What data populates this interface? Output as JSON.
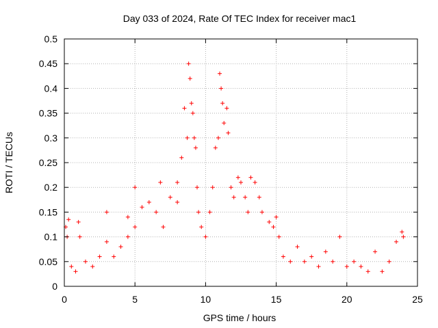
{
  "chart_data": {
    "type": "scatter",
    "title": "Day 033 of 2024, Rate Of TEC Index for receiver mac1",
    "xlabel": "GPS time / hours",
    "ylabel": "ROTI / TECUs",
    "xlim": [
      0,
      25
    ],
    "ylim": [
      0,
      0.5
    ],
    "xticks": [
      0,
      5,
      10,
      15,
      20,
      25
    ],
    "yticks": [
      0,
      0.05,
      0.1,
      0.15,
      0.2,
      0.25,
      0.3,
      0.35,
      0.4,
      0.45,
      0.5
    ],
    "xtick_labels": [
      "0",
      "5",
      "10",
      "15",
      "20",
      "25"
    ],
    "ytick_labels": [
      "0",
      "0.05",
      "0.1",
      "0.15",
      "0.2",
      "0.25",
      "0.3",
      "0.35",
      "0.4",
      "0.45",
      "0.5"
    ],
    "grid": true,
    "marker": "+",
    "color": "#ff0000",
    "points": [
      [
        0.1,
        0.12
      ],
      [
        0.2,
        0.1
      ],
      [
        0.3,
        0.135
      ],
      [
        0.5,
        0.04
      ],
      [
        0.8,
        0.03
      ],
      [
        1.0,
        0.13
      ],
      [
        1.1,
        0.1
      ],
      [
        1.5,
        0.05
      ],
      [
        2.0,
        0.04
      ],
      [
        2.5,
        0.06
      ],
      [
        3.0,
        0.09
      ],
      [
        3.0,
        0.15
      ],
      [
        3.5,
        0.06
      ],
      [
        4.0,
        0.08
      ],
      [
        4.5,
        0.1
      ],
      [
        4.5,
        0.14
      ],
      [
        5.0,
        0.2
      ],
      [
        5.0,
        0.12
      ],
      [
        5.5,
        0.16
      ],
      [
        6.0,
        0.17
      ],
      [
        6.5,
        0.15
      ],
      [
        6.8,
        0.21
      ],
      [
        7.0,
        0.12
      ],
      [
        7.5,
        0.18
      ],
      [
        8.0,
        0.17
      ],
      [
        8.0,
        0.21
      ],
      [
        8.3,
        0.26
      ],
      [
        8.5,
        0.36
      ],
      [
        8.7,
        0.3
      ],
      [
        8.8,
        0.45
      ],
      [
        8.9,
        0.42
      ],
      [
        9.0,
        0.37
      ],
      [
        9.1,
        0.35
      ],
      [
        9.2,
        0.3
      ],
      [
        9.3,
        0.28
      ],
      [
        9.4,
        0.2
      ],
      [
        9.5,
        0.15
      ],
      [
        9.7,
        0.12
      ],
      [
        10.0,
        0.1
      ],
      [
        10.3,
        0.15
      ],
      [
        10.5,
        0.2
      ],
      [
        10.7,
        0.28
      ],
      [
        10.9,
        0.3
      ],
      [
        11.0,
        0.43
      ],
      [
        11.1,
        0.4
      ],
      [
        11.2,
        0.37
      ],
      [
        11.3,
        0.33
      ],
      [
        11.5,
        0.36
      ],
      [
        11.6,
        0.31
      ],
      [
        11.8,
        0.2
      ],
      [
        12.0,
        0.18
      ],
      [
        12.3,
        0.22
      ],
      [
        12.5,
        0.21
      ],
      [
        12.8,
        0.18
      ],
      [
        13.0,
        0.15
      ],
      [
        13.2,
        0.22
      ],
      [
        13.5,
        0.21
      ],
      [
        13.8,
        0.18
      ],
      [
        14.0,
        0.15
      ],
      [
        14.5,
        0.13
      ],
      [
        14.8,
        0.12
      ],
      [
        15.0,
        0.14
      ],
      [
        15.2,
        0.1
      ],
      [
        15.5,
        0.06
      ],
      [
        16.0,
        0.05
      ],
      [
        16.5,
        0.08
      ],
      [
        17.0,
        0.05
      ],
      [
        17.5,
        0.06
      ],
      [
        18.0,
        0.04
      ],
      [
        18.5,
        0.07
      ],
      [
        19.0,
        0.05
      ],
      [
        19.5,
        0.1
      ],
      [
        20.0,
        0.04
      ],
      [
        20.5,
        0.05
      ],
      [
        21.0,
        0.04
      ],
      [
        21.5,
        0.03
      ],
      [
        22.0,
        0.07
      ],
      [
        22.5,
        0.03
      ],
      [
        23.0,
        0.05
      ],
      [
        23.5,
        0.09
      ],
      [
        23.9,
        0.11
      ],
      [
        24.0,
        0.1
      ]
    ]
  }
}
